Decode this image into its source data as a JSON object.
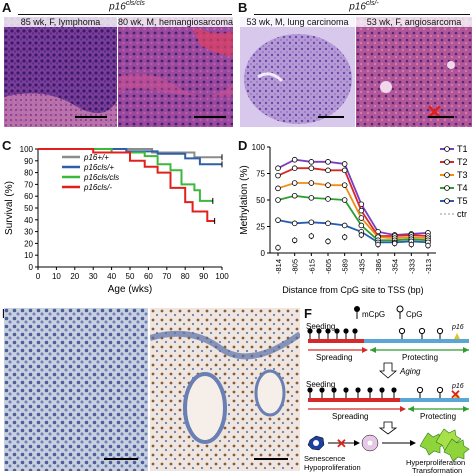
{
  "panels": {
    "A": {
      "letter": "A",
      "header": "p16",
      "header_sup": "cls/cls",
      "images": [
        {
          "caption": "85 wk, F, lymphoma"
        },
        {
          "caption": "80 wk, M, hemangiosarcoma"
        }
      ]
    },
    "B": {
      "letter": "B",
      "header": "p16",
      "header_sup": "cls/-",
      "images": [
        {
          "caption": "53 wk, M, lung carcinoma"
        },
        {
          "caption": "53 wk, F, angiosarcoma"
        }
      ]
    },
    "E": {
      "letter": "E"
    },
    "F": {
      "letter": "F",
      "legend_mcpg": "mCpG",
      "legend_cpg": "CpG",
      "p16_label": "p16",
      "seeding": "Seeding",
      "spreading": "Spreading",
      "protecting": "Protecting",
      "aging": "Aging",
      "senescence": "Senescence",
      "hypoproliferation": "Hypoproliferation",
      "hyperproliferation": "Hyperproliferation",
      "transformation": "Transformation"
    }
  },
  "chart_data": [
    {
      "panel": "C",
      "type": "line",
      "style": "step",
      "xlabel": "Age (wks)",
      "ylabel": "Survival (%)",
      "xlim": [
        0,
        100
      ],
      "ylim": [
        0,
        100
      ],
      "xticks": [
        0,
        10,
        20,
        30,
        40,
        50,
        60,
        70,
        80,
        90,
        100
      ],
      "yticks": [
        0,
        10,
        20,
        30,
        40,
        50,
        60,
        70,
        80,
        90,
        100
      ],
      "series": [
        {
          "name": "p16+/+",
          "color": "#8c8c8c",
          "points": [
            [
              0,
              100
            ],
            [
              62,
              100
            ],
            [
              62,
              97
            ],
            [
              85,
              97
            ],
            [
              85,
              93
            ],
            [
              100,
              93
            ]
          ]
        },
        {
          "name": "p16cls/+",
          "color": "#2f5fa8",
          "points": [
            [
              0,
              100
            ],
            [
              48,
              100
            ],
            [
              48,
              98
            ],
            [
              65,
              98
            ],
            [
              65,
              96
            ],
            [
              80,
              96
            ],
            [
              80,
              92
            ],
            [
              88,
              92
            ],
            [
              88,
              87
            ],
            [
              100,
              87
            ]
          ]
        },
        {
          "name": "p16cls/cls",
          "color": "#3cb83c",
          "points": [
            [
              0,
              100
            ],
            [
              40,
              100
            ],
            [
              40,
              97
            ],
            [
              58,
              97
            ],
            [
              58,
              94
            ],
            [
              65,
              94
            ],
            [
              65,
              87
            ],
            [
              72,
              87
            ],
            [
              72,
              82
            ],
            [
              78,
              82
            ],
            [
              78,
              70
            ],
            [
              85,
              70
            ],
            [
              85,
              65
            ],
            [
              88,
              65
            ],
            [
              88,
              56
            ],
            [
              95,
              56
            ]
          ]
        },
        {
          "name": "p16cls/-",
          "color": "#e0201c",
          "points": [
            [
              0,
              100
            ],
            [
              30,
              100
            ],
            [
              30,
              97
            ],
            [
              50,
              97
            ],
            [
              50,
              90
            ],
            [
              58,
              90
            ],
            [
              58,
              85
            ],
            [
              65,
              85
            ],
            [
              65,
              80
            ],
            [
              72,
              80
            ],
            [
              72,
              67
            ],
            [
              80,
              67
            ],
            [
              80,
              55
            ],
            [
              84,
              55
            ],
            [
              84,
              47
            ],
            [
              92,
              47
            ],
            [
              92,
              39
            ],
            [
              96,
              39
            ]
          ]
        }
      ]
    },
    {
      "panel": "D",
      "type": "line",
      "xlabel": "Distance from CpG site to TSS (bp)",
      "ylabel": "Methylation (%)",
      "ylim": [
        0,
        100
      ],
      "yticks": [
        0,
        25,
        50,
        75,
        100
      ],
      "categories": [
        "-814",
        "-805",
        "-615",
        "-605",
        "-589",
        "-435",
        "-386",
        "-354",
        "-333",
        "-313"
      ],
      "series": [
        {
          "name": "T1",
          "color": "#7a3fbf",
          "values": [
            80,
            88,
            86,
            86,
            84,
            46,
            20,
            17,
            18,
            19
          ]
        },
        {
          "name": "T2",
          "color": "#d62828",
          "values": [
            73,
            80,
            80,
            78,
            78,
            40,
            16,
            16,
            17,
            16
          ]
        },
        {
          "name": "T3",
          "color": "#f08c1a",
          "values": [
            61,
            66,
            66,
            64,
            64,
            33,
            15,
            14,
            15,
            14
          ]
        },
        {
          "name": "T4",
          "color": "#2e9e2e",
          "values": [
            50,
            54,
            52,
            51,
            50,
            26,
            12,
            12,
            13,
            12
          ]
        },
        {
          "name": "T5",
          "color": "#2a5db0",
          "values": [
            31,
            28,
            29,
            28,
            26,
            20,
            10,
            10,
            11,
            10
          ]
        },
        {
          "name": "ctr",
          "color": "#000000",
          "values": [
            5,
            12,
            16,
            11,
            15,
            17,
            8,
            9,
            8,
            7
          ]
        }
      ]
    }
  ]
}
